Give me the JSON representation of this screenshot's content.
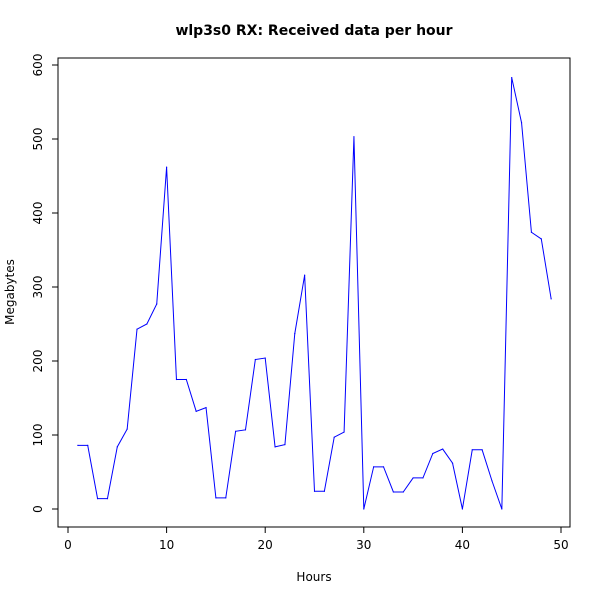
{
  "chart_data": {
    "type": "line",
    "title": "wlp3s0 RX: Received data per hour",
    "xlabel": "Hours",
    "ylabel": "Megabytes",
    "xlim": [
      0,
      50
    ],
    "ylim": [
      0,
      600
    ],
    "x_ticks": [
      0,
      10,
      20,
      30,
      40,
      50
    ],
    "y_ticks": [
      0,
      100,
      200,
      300,
      400,
      500,
      600
    ],
    "grid": false,
    "line_color": "#0000ff",
    "x": [
      1,
      2,
      3,
      4,
      5,
      6,
      7,
      8,
      9,
      10,
      11,
      12,
      13,
      14,
      15,
      16,
      17,
      18,
      19,
      20,
      21,
      22,
      23,
      24,
      25,
      26,
      27,
      28,
      29,
      30,
      31,
      32,
      33,
      34,
      35,
      36,
      37,
      38,
      39,
      40,
      41,
      42,
      43,
      44,
      45,
      46,
      47,
      48,
      49
    ],
    "values": [
      86,
      86,
      14,
      14,
      84,
      108,
      243,
      250,
      277,
      462,
      175,
      175,
      132,
      137,
      15,
      15,
      105,
      107,
      202,
      204,
      84,
      87,
      237,
      316,
      24,
      24,
      97,
      104,
      503,
      0,
      57,
      57,
      23,
      23,
      42,
      42,
      75,
      81,
      62,
      0,
      80,
      80,
      38,
      0,
      583,
      522,
      374,
      365,
      284
    ]
  }
}
